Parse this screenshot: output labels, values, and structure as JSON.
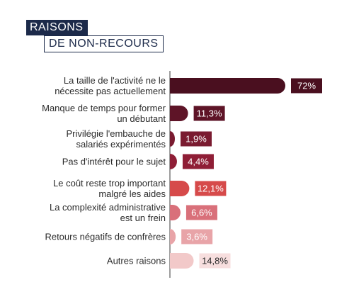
{
  "title": {
    "line1": "RAISONS",
    "line2": "DE NON-RECOURS"
  },
  "chart_data": {
    "type": "bar",
    "orientation": "horizontal",
    "categories": [
      [
        "La taille de l'activité ne le",
        "nécessite pas actuellement"
      ],
      [
        "Manque de temps pour former",
        "un débutant"
      ],
      [
        "Privilégie l'embauche de",
        "salariés expérimentés"
      ],
      [
        "Pas d'intérêt pour le sujet"
      ],
      [
        "Le coût reste trop important",
        "malgré les aides"
      ],
      [
        "La complexité administrative",
        "est un frein"
      ],
      [
        "Retours négatifs de confrères"
      ],
      [
        "Autres raisons"
      ]
    ],
    "values": [
      72,
      11.3,
      1.9,
      4.4,
      12.1,
      6.6,
      3.6,
      14.8
    ],
    "value_labels": [
      "72%",
      "11,3%",
      "1,9%",
      "4,4%",
      "12,1%",
      "6,6%",
      "3,6%",
      "14,8%"
    ],
    "colors": [
      "#4a0f1f",
      "#5e1427",
      "#7a1b30",
      "#8f1e36",
      "#d64a4a",
      "#d9707a",
      "#e8a4a8",
      "#f2c9c9"
    ],
    "label_text_colors": [
      "#ffffff",
      "#ffffff",
      "#ffffff",
      "#ffffff",
      "#ffffff",
      "#ffffff",
      "#ffffff",
      "#2b2b2b"
    ],
    "xlim": [
      0,
      72
    ],
    "grid": false,
    "legend": "none"
  }
}
